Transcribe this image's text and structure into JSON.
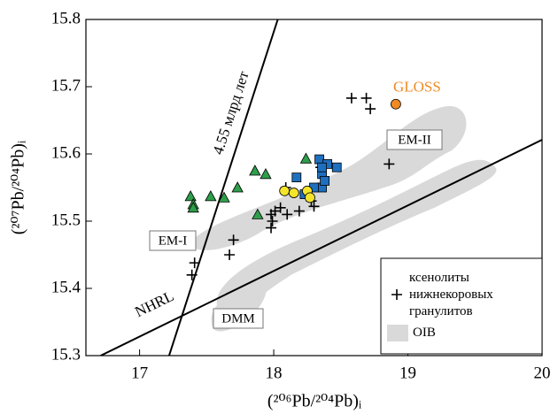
{
  "chart_data": {
    "type": "scatter",
    "x_label": "(²⁰⁶Pb/²⁰⁴Pb)ᵢ",
    "y_label": "(²⁰⁷Pb/²⁰⁴Pb)ᵢ",
    "xlim": [
      16.6,
      20
    ],
    "ylim": [
      15.3,
      15.8
    ],
    "xticks": [
      17,
      18,
      19,
      20
    ],
    "yticks": [
      15.3,
      15.4,
      15.5,
      15.6,
      15.7,
      15.8
    ],
    "series": [
      {
        "name": "ксенолиты нижнекоровых гранулитов",
        "color": "#000000",
        "marker": "plus",
        "x": [
          17.39,
          17.41,
          17.67,
          17.7,
          17.98,
          17.99,
          17.98,
          18.01,
          18.05,
          18.1,
          18.19,
          18.28,
          18.3,
          18.09,
          18.35,
          18.86,
          18.58,
          18.69,
          18.72
        ],
        "y": [
          15.42,
          15.438,
          15.45,
          15.472,
          15.49,
          15.5,
          15.51,
          15.515,
          15.52,
          15.51,
          15.515,
          15.53,
          15.522,
          15.55,
          15.58,
          15.585,
          15.683,
          15.683,
          15.667
        ]
      },
      {
        "color": "#2e9e4a",
        "marker": "triangle",
        "x": [
          17.38,
          17.4,
          17.4,
          17.53,
          17.63,
          17.73,
          17.86,
          17.94,
          17.88,
          18.24
        ],
        "y": [
          15.537,
          15.525,
          15.52,
          15.537,
          15.535,
          15.55,
          15.575,
          15.57,
          15.51,
          15.593
        ]
      },
      {
        "color": "#1f6fbf",
        "marker": "square",
        "x": [
          18.17,
          18.34,
          18.4,
          18.47,
          18.36,
          18.36,
          18.23,
          18.3,
          18.36,
          18.38
        ],
        "y": [
          15.565,
          15.592,
          15.585,
          15.58,
          15.57,
          15.55,
          15.54,
          15.55,
          15.58,
          15.56
        ]
      },
      {
        "color": "#f5e52a",
        "marker": "circle",
        "x": [
          18.08,
          18.15,
          18.25,
          18.27
        ],
        "y": [
          15.545,
          15.542,
          15.545,
          15.535
        ]
      },
      {
        "name": "GLOSS",
        "color": "#f08a24",
        "marker": "circle",
        "point_label": true,
        "x": [
          18.91
        ],
        "y": [
          15.674
        ]
      }
    ],
    "fields": [
      {
        "name": "OIB",
        "color": "#d9d9d9"
      }
    ],
    "lines": [
      {
        "label": "NHRL",
        "x": [
          16.71,
          20
        ],
        "y": [
          15.3,
          15.621
        ]
      },
      {
        "label": "4.55 млрд лет",
        "x": [
          17.22,
          18.03
        ],
        "y": [
          15.3,
          15.8
        ]
      }
    ],
    "annotations": [
      "EM-I",
      "EM-II",
      "DMM"
    ]
  }
}
